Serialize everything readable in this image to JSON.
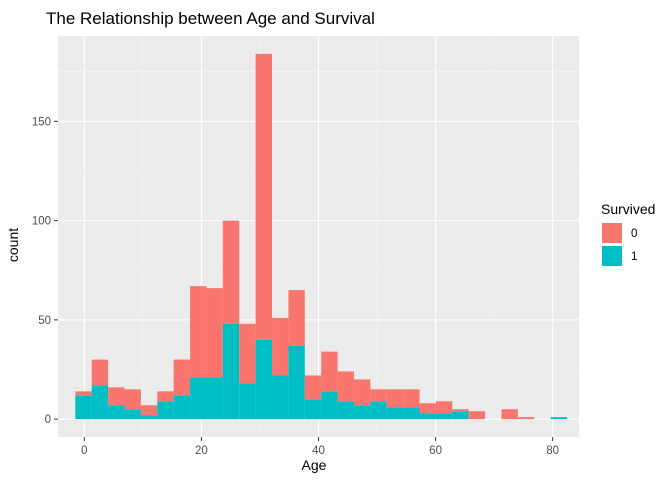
{
  "chart_data": {
    "type": "bar",
    "stacked": true,
    "title": "The Relationship between Age and Survival",
    "xlabel": "Age",
    "ylabel": "count",
    "xlim": [
      -4.5,
      84.5
    ],
    "ylim": [
      -9,
      193
    ],
    "xticks": [
      0,
      20,
      40,
      60,
      80
    ],
    "yticks": [
      0,
      50,
      100,
      150
    ],
    "grid": true,
    "bin_width": 2.8,
    "bin_centers": [
      -0.14,
      2.66,
      5.46,
      8.26,
      11.06,
      13.86,
      16.66,
      19.46,
      22.26,
      25.06,
      27.86,
      30.66,
      33.46,
      36.26,
      39.06,
      41.86,
      44.66,
      47.46,
      50.26,
      53.06,
      55.86,
      58.66,
      61.46,
      64.26,
      67.06,
      69.86,
      72.66,
      75.46,
      78.26,
      81.06
    ],
    "legend": {
      "title": "Survived",
      "position": "right",
      "entries": [
        {
          "label": "0",
          "color": "#F8766D"
        },
        {
          "label": "1",
          "color": "#00BFC4"
        }
      ]
    },
    "series": [
      {
        "key": "0",
        "color": "#F8766D",
        "values": [
          2,
          13,
          9,
          10,
          5,
          5,
          18,
          46,
          45,
          52,
          30,
          144,
          29,
          28,
          12,
          20,
          15,
          13,
          6,
          9,
          9,
          5,
          6,
          1,
          4,
          0,
          5,
          1,
          0,
          0
        ]
      },
      {
        "key": "1",
        "color": "#00BFC4",
        "values": [
          12,
          17,
          7,
          5,
          2,
          9,
          12,
          21,
          21,
          48,
          18,
          40,
          22,
          37,
          10,
          14,
          9,
          7,
          9,
          6,
          6,
          3,
          3,
          4,
          0,
          0,
          0,
          0,
          0,
          1
        ]
      }
    ]
  }
}
